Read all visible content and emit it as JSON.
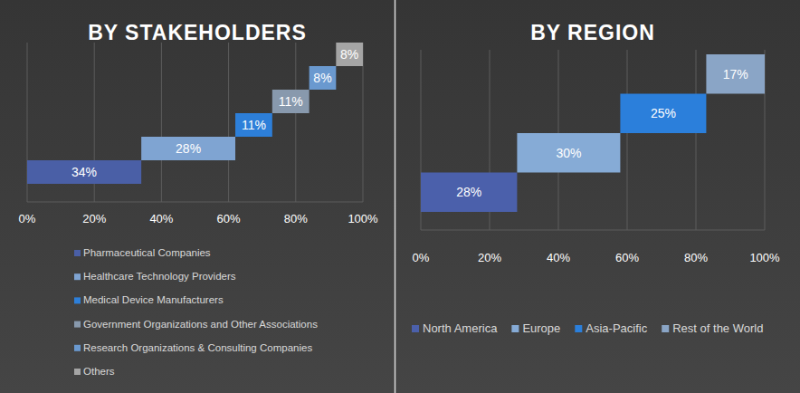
{
  "chart_data": [
    {
      "type": "bar",
      "title": "BY STAKEHOLDERS",
      "orientation": "horizontal",
      "stacked": true,
      "data_labels": true,
      "grid": true,
      "legend": "bottom",
      "categories": [
        null
      ],
      "xlim": [
        0,
        100
      ],
      "xticks": [
        {
          "value": 0,
          "label": "0%"
        },
        {
          "value": 20,
          "label": "20%"
        },
        {
          "value": 40,
          "label": "40%"
        },
        {
          "value": 60,
          "label": "60%"
        },
        {
          "value": 80,
          "label": "80%"
        },
        {
          "value": 100,
          "label": "100%"
        }
      ],
      "series": [
        {
          "name": "Pharmaceutical Companies",
          "color": "#4a5fa6",
          "values": [
            34
          ],
          "value_labels": [
            "34%"
          ]
        },
        {
          "name": "Healthcare Technology Providers",
          "color": "#7fa4d2",
          "values": [
            28
          ],
          "value_labels": [
            "28%"
          ]
        },
        {
          "name": "Medical Device Manufacturers",
          "color": "#2d7fd9",
          "values": [
            11
          ],
          "value_labels": [
            "11%"
          ]
        },
        {
          "name": "Government Organizations and Other Associations",
          "color": "#8899ad",
          "values": [
            11
          ],
          "value_labels": [
            "11%"
          ]
        },
        {
          "name": "Research Organizations & Consulting Companies",
          "color": "#6a99cf",
          "values": [
            8
          ],
          "value_labels": [
            "8%"
          ]
        },
        {
          "name": "Others",
          "color": "#a5a5a5",
          "values": [
            8
          ],
          "value_labels": [
            "8%"
          ]
        }
      ]
    },
    {
      "type": "bar",
      "title": "BY REGION",
      "orientation": "horizontal",
      "stacked": true,
      "data_labels": true,
      "grid": true,
      "legend": "bottom",
      "categories": [
        null
      ],
      "xlim": [
        0,
        100
      ],
      "xticks": [
        {
          "value": 0,
          "label": "0%"
        },
        {
          "value": 20,
          "label": "20%"
        },
        {
          "value": 40,
          "label": "40%"
        },
        {
          "value": 60,
          "label": "60%"
        },
        {
          "value": 80,
          "label": "80%"
        },
        {
          "value": 100,
          "label": "100%"
        }
      ],
      "series": [
        {
          "name": "North America",
          "color": "#4b60ab",
          "values": [
            28
          ],
          "value_labels": [
            "28%"
          ]
        },
        {
          "name": "Europe",
          "color": "#86abd6",
          "values": [
            30
          ],
          "value_labels": [
            "30%"
          ]
        },
        {
          "name": "Asia-Pacific",
          "color": "#2b7fdb",
          "values": [
            25
          ],
          "value_labels": [
            "25%"
          ]
        },
        {
          "name": "Rest of the World",
          "color": "#8aa5c6",
          "values": [
            17
          ],
          "value_labels": [
            "17%"
          ]
        }
      ]
    }
  ]
}
